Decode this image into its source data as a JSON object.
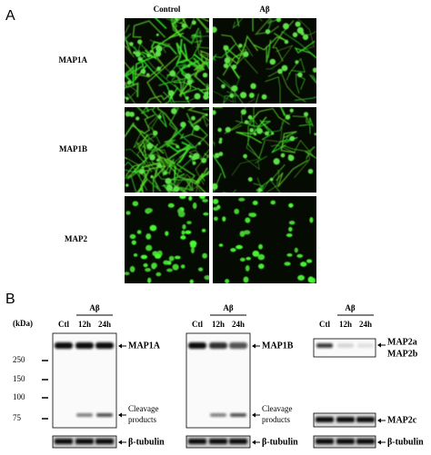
{
  "panel_a": {
    "label": "A",
    "columns": [
      "Control",
      "Aβ"
    ],
    "rows": [
      "MAP1A",
      "MAP1B",
      "MAP2"
    ]
  },
  "panel_b": {
    "label": "B",
    "unit": "(kDa)",
    "markers": [
      "250",
      "150",
      "100",
      "75"
    ],
    "blots": [
      {
        "group": "Aβ",
        "lanes": [
          "Ctl",
          "12h",
          "24h"
        ],
        "labels": [
          "MAP1A",
          "Cleavage",
          "products",
          "β-tubulin"
        ]
      },
      {
        "group": "Aβ",
        "lanes": [
          "Ctl",
          "12h",
          "24h"
        ],
        "labels": [
          "MAP1B",
          "Cleavage",
          "products",
          "β-tubulin"
        ]
      },
      {
        "group": "Aβ",
        "lanes": [
          "Ctl",
          "12h",
          "24h"
        ],
        "labels": [
          "MAP2a",
          "MAP2b",
          "MAP2c",
          "β-tubulin"
        ]
      }
    ]
  }
}
